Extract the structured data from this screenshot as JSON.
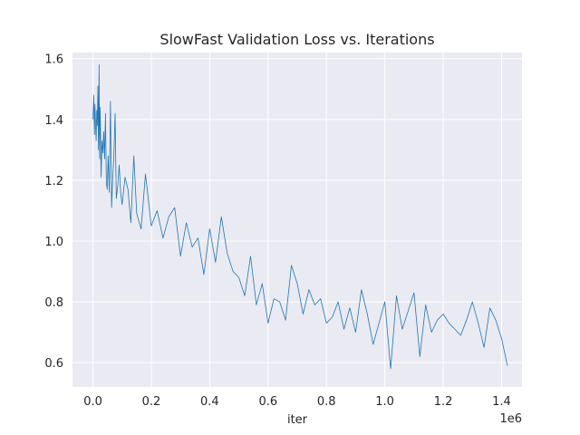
{
  "chart_data": {
    "type": "line",
    "title": "SlowFast Validation Loss vs. Iterations",
    "xlabel": "iter",
    "ylabel": "",
    "x_offset_label": "1e6",
    "xlim": [
      -0.07,
      1.47
    ],
    "ylim": [
      0.52,
      1.62
    ],
    "x_ticks": [
      0.0,
      0.2,
      0.4,
      0.6,
      0.8,
      1.0,
      1.2,
      1.4
    ],
    "x_tick_labels": [
      "0.0",
      "0.2",
      "0.4",
      "0.6",
      "0.8",
      "1.0",
      "1.2",
      "1.4"
    ],
    "y_ticks": [
      0.6,
      0.8,
      1.0,
      1.2,
      1.4,
      1.6
    ],
    "y_tick_labels": [
      "0.6",
      "0.8",
      "1.0",
      "1.2",
      "1.4",
      "1.6"
    ],
    "grid": true,
    "background": "#eaeaf2",
    "series": [
      {
        "color": "#1f77b4",
        "x": [
          0.0,
          0.003,
          0.005,
          0.007,
          0.009,
          0.011,
          0.013,
          0.015,
          0.017,
          0.019,
          0.021,
          0.023,
          0.025,
          0.028,
          0.031,
          0.034,
          0.037,
          0.04,
          0.043,
          0.046,
          0.049,
          0.052,
          0.056,
          0.06,
          0.064,
          0.068,
          0.072,
          0.076,
          0.08,
          0.085,
          0.09,
          0.095,
          0.1,
          0.11,
          0.12,
          0.13,
          0.14,
          0.15,
          0.165,
          0.18,
          0.2,
          0.22,
          0.24,
          0.26,
          0.28,
          0.3,
          0.32,
          0.34,
          0.36,
          0.38,
          0.4,
          0.42,
          0.44,
          0.46,
          0.48,
          0.5,
          0.52,
          0.54,
          0.56,
          0.58,
          0.6,
          0.62,
          0.64,
          0.66,
          0.68,
          0.7,
          0.72,
          0.74,
          0.76,
          0.78,
          0.8,
          0.82,
          0.84,
          0.86,
          0.88,
          0.9,
          0.92,
          0.94,
          0.96,
          0.98,
          1.0,
          1.02,
          1.04,
          1.06,
          1.08,
          1.1,
          1.12,
          1.14,
          1.16,
          1.18,
          1.2,
          1.22,
          1.24,
          1.26,
          1.28,
          1.3,
          1.32,
          1.34,
          1.36,
          1.38,
          1.4,
          1.42
        ],
        "y": [
          1.4,
          1.48,
          1.35,
          1.45,
          1.38,
          1.33,
          1.43,
          1.38,
          1.51,
          1.3,
          1.58,
          1.27,
          1.44,
          1.21,
          1.33,
          1.29,
          1.36,
          1.27,
          1.42,
          1.19,
          1.17,
          1.28,
          1.16,
          1.46,
          1.11,
          1.21,
          1.29,
          1.42,
          1.14,
          1.18,
          1.25,
          1.16,
          1.12,
          1.21,
          1.17,
          1.06,
          1.28,
          1.09,
          1.04,
          1.22,
          1.05,
          1.1,
          1.01,
          1.08,
          1.11,
          0.95,
          1.06,
          0.98,
          1.01,
          0.89,
          1.04,
          0.93,
          1.08,
          0.96,
          0.9,
          0.88,
          0.82,
          0.95,
          0.79,
          0.86,
          0.73,
          0.81,
          0.8,
          0.74,
          0.92,
          0.86,
          0.76,
          0.84,
          0.79,
          0.81,
          0.73,
          0.75,
          0.8,
          0.71,
          0.78,
          0.7,
          0.84,
          0.76,
          0.66,
          0.73,
          0.8,
          0.58,
          0.82,
          0.71,
          0.77,
          0.83,
          0.62,
          0.79,
          0.7,
          0.74,
          0.76,
          0.73,
          0.71,
          0.69,
          0.74,
          0.8,
          0.73,
          0.65,
          0.78,
          0.74,
          0.68,
          0.59
        ]
      }
    ]
  }
}
